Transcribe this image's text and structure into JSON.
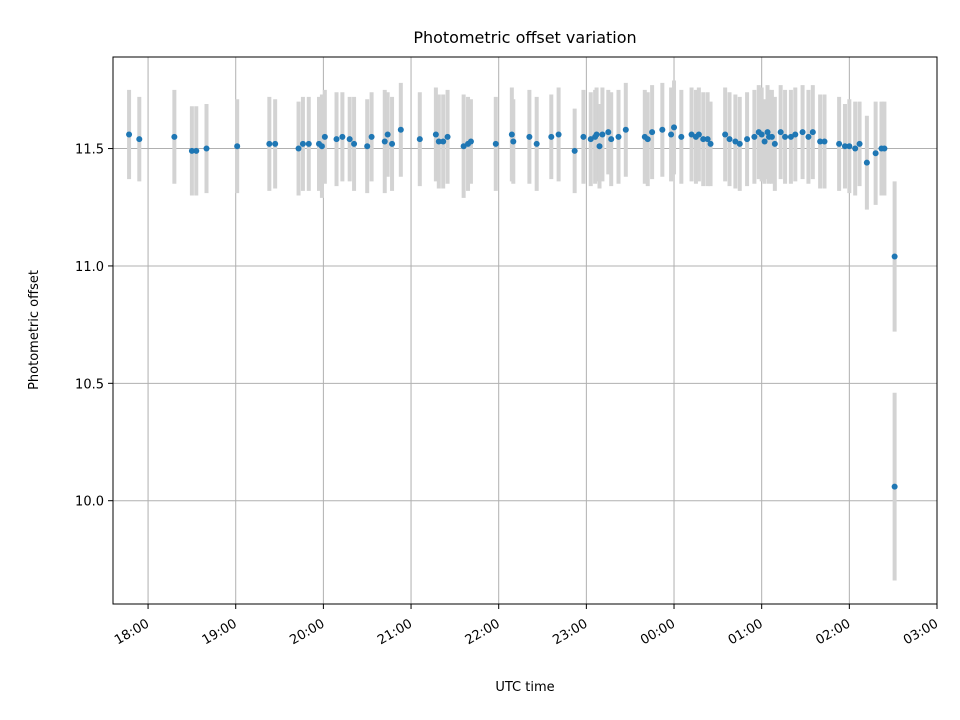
{
  "chart_data": {
    "type": "scatter",
    "title": "Photometric offset variation",
    "xlabel": "UTC time",
    "ylabel": "Photometric offset",
    "x_axis": {
      "kind": "time",
      "range": [
        "17:36",
        "03:00"
      ],
      "tick_labels": [
        "18:00",
        "19:00",
        "20:00",
        "21:00",
        "22:00",
        "23:00",
        "00:00",
        "01:00",
        "02:00",
        "03:00"
      ]
    },
    "y_axis": {
      "range": [
        9.56,
        11.89
      ],
      "tick_labels": [
        "10.0",
        "10.5",
        "11.0",
        "11.5"
      ]
    },
    "grid": true,
    "colors": {
      "points": "#1f77b4",
      "errorbars": "#d3d3d3",
      "grid": "#b0b0b0"
    },
    "series": [
      {
        "x": [
          "17:47",
          "17:54",
          "18:18",
          "18:30",
          "18:33",
          "18:40",
          "19:01",
          "19:23",
          "19:27",
          "19:43",
          "19:46",
          "19:50",
          "19:57",
          "19:59",
          "20:01",
          "20:09",
          "20:13",
          "20:18",
          "20:21",
          "20:30",
          "20:33",
          "20:42",
          "20:44",
          "20:47",
          "20:53",
          "21:06",
          "21:17",
          "21:19",
          "21:22",
          "21:25",
          "21:36",
          "21:39",
          "21:41",
          "21:58",
          "22:09",
          "22:10",
          "22:21",
          "22:26",
          "22:36",
          "22:41",
          "22:52",
          "22:58",
          "23:03",
          "23:06",
          "23:07",
          "23:09",
          "23:11",
          "23:15",
          "23:17",
          "23:22",
          "23:27",
          "23:40",
          "23:42",
          "23:45",
          "23:52",
          "23:58",
          "24:00",
          "24:05",
          "24:12",
          "24:15",
          "24:17",
          "24:20",
          "24:23",
          "24:25",
          "24:35",
          "24:38",
          "24:42",
          "24:45",
          "24:50",
          "24:55",
          "24:58",
          "25:00",
          "25:02",
          "25:04",
          "25:05",
          "25:07",
          "25:09",
          "25:13",
          "25:16",
          "25:20",
          "25:23",
          "25:28",
          "25:32",
          "25:35",
          "25:40",
          "25:43",
          "25:53",
          "25:57",
          "26:00",
          "26:04",
          "26:07",
          "26:12",
          "26:18",
          "26:22",
          "26:24",
          "26:31",
          "26:31"
        ],
        "y": [
          11.56,
          11.54,
          11.55,
          11.49,
          11.49,
          11.5,
          11.51,
          11.52,
          11.52,
          11.5,
          11.52,
          11.52,
          11.52,
          11.51,
          11.55,
          11.54,
          11.55,
          11.54,
          11.52,
          11.51,
          11.55,
          11.53,
          11.56,
          11.52,
          11.58,
          11.54,
          11.56,
          11.53,
          11.53,
          11.55,
          11.51,
          11.52,
          11.53,
          11.52,
          11.56,
          11.53,
          11.55,
          11.52,
          11.55,
          11.56,
          11.49,
          11.55,
          11.54,
          11.55,
          11.56,
          11.51,
          11.56,
          11.57,
          11.54,
          11.55,
          11.58,
          11.55,
          11.54,
          11.57,
          11.58,
          11.56,
          11.59,
          11.55,
          11.56,
          11.55,
          11.56,
          11.54,
          11.54,
          11.52,
          11.56,
          11.54,
          11.53,
          11.52,
          11.54,
          11.55,
          11.57,
          11.56,
          11.53,
          11.57,
          11.55,
          11.55,
          11.52,
          11.57,
          11.55,
          11.55,
          11.56,
          11.57,
          11.55,
          11.57,
          11.53,
          11.53,
          11.52,
          11.51,
          11.51,
          11.5,
          11.52,
          11.44,
          11.48,
          11.5,
          11.5,
          11.04,
          10.06
        ],
        "err": [
          0.19,
          0.18,
          0.2,
          0.19,
          0.19,
          0.19,
          0.2,
          0.2,
          0.19,
          0.2,
          0.2,
          0.2,
          0.2,
          0.22,
          0.2,
          0.2,
          0.19,
          0.18,
          0.2,
          0.2,
          0.19,
          0.22,
          0.18,
          0.2,
          0.2,
          0.2,
          0.2,
          0.2,
          0.2,
          0.2,
          0.22,
          0.2,
          0.18,
          0.2,
          0.2,
          0.18,
          0.2,
          0.2,
          0.18,
          0.2,
          0.18,
          0.2,
          0.2,
          0.2,
          0.2,
          0.18,
          0.2,
          0.18,
          0.2,
          0.2,
          0.2,
          0.2,
          0.2,
          0.2,
          0.2,
          0.2,
          0.2,
          0.2,
          0.2,
          0.2,
          0.2,
          0.2,
          0.2,
          0.18,
          0.2,
          0.2,
          0.2,
          0.2,
          0.2,
          0.2,
          0.2,
          0.2,
          0.18,
          0.2,
          0.2,
          0.2,
          0.2,
          0.2,
          0.2,
          0.2,
          0.2,
          0.2,
          0.2,
          0.2,
          0.2,
          0.2,
          0.2,
          0.18,
          0.2,
          0.2,
          0.18,
          0.2,
          0.22,
          0.2,
          0.2,
          0.32,
          0.4
        ]
      }
    ]
  }
}
